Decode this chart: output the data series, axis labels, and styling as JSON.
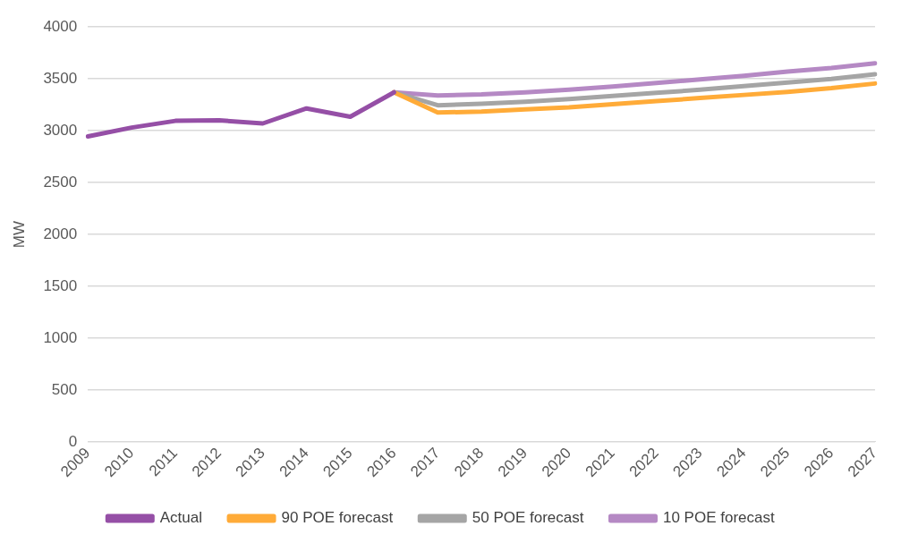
{
  "chart_data": {
    "type": "line",
    "ylabel": "MW",
    "categories": [
      "2009",
      "2010",
      "2011",
      "2012",
      "2013",
      "2014",
      "2015",
      "2016",
      "2017",
      "2018",
      "2019",
      "2020",
      "2021",
      "2022",
      "2023",
      "2024",
      "2025",
      "2026",
      "2027"
    ],
    "series": [
      {
        "name": "Actual",
        "color": "#954fa6",
        "values": [
          2945,
          3030,
          3095,
          3100,
          3070,
          3215,
          3135,
          3370,
          null,
          null,
          null,
          null,
          null,
          null,
          null,
          null,
          null,
          null,
          null
        ]
      },
      {
        "name": "90 POE forecast",
        "color": "#ffab38",
        "values": [
          null,
          null,
          null,
          null,
          null,
          null,
          null,
          3370,
          3175,
          3185,
          3205,
          3225,
          3255,
          3285,
          3315,
          3345,
          3375,
          3410,
          3455
        ]
      },
      {
        "name": "50 POE forecast",
        "color": "#a5a5a5",
        "values": [
          null,
          null,
          null,
          null,
          null,
          null,
          null,
          3370,
          3245,
          3260,
          3280,
          3305,
          3335,
          3365,
          3395,
          3430,
          3465,
          3500,
          3545
        ]
      },
      {
        "name": "10 POE forecast",
        "color": "#b589c4",
        "values": [
          null,
          null,
          null,
          null,
          null,
          null,
          null,
          3370,
          3340,
          3350,
          3370,
          3395,
          3425,
          3460,
          3495,
          3530,
          3570,
          3605,
          3650
        ]
      }
    ],
    "ylim": [
      0,
      4000
    ],
    "yticks": [
      0,
      500,
      1000,
      1500,
      2000,
      2500,
      3000,
      3500,
      4000
    ],
    "grid": "y",
    "legend": "bottom",
    "marker": "none",
    "line_style": "solid"
  }
}
